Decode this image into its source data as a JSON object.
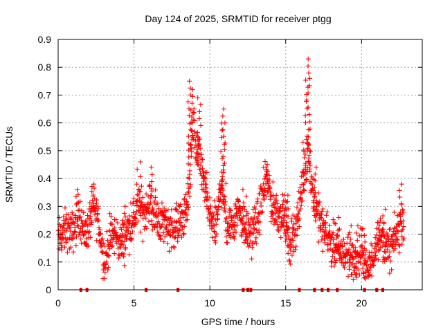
{
  "chart_data": {
    "type": "scatter",
    "title": "Day 124 of 2025, SRMTID for receiver ptgg",
    "xlabel": "GPS time / hours",
    "ylabel": "SRMTID / TECUs",
    "xlim": [
      0,
      24
    ],
    "ylim": [
      0,
      0.9
    ],
    "x_ticks": [
      0,
      5,
      10,
      15,
      20
    ],
    "x_tick_labels": [
      "0",
      "5",
      "10",
      "15",
      "20"
    ],
    "y_ticks": [
      0,
      0.1,
      0.2,
      0.3,
      0.4,
      0.5,
      0.6,
      0.7,
      0.8,
      0.9
    ],
    "y_tick_labels": [
      "0",
      "0.1",
      "0.2",
      "0.3",
      "0.4",
      "0.5",
      "0.6",
      "0.7",
      "0.8",
      "0.9"
    ],
    "grid": true,
    "marker": "+",
    "series_color": "#ff0000",
    "series": [
      {
        "name": "SRMTID",
        "envelope": [
          [
            0.0,
            0.18
          ],
          [
            0.3,
            0.2
          ],
          [
            0.6,
            0.22
          ],
          [
            0.9,
            0.2
          ],
          [
            1.2,
            0.24
          ],
          [
            1.4,
            0.28
          ],
          [
            1.7,
            0.2
          ],
          [
            2.0,
            0.22
          ],
          [
            2.3,
            0.3
          ],
          [
            2.6,
            0.26
          ],
          [
            2.9,
            0.15
          ],
          [
            3.1,
            0.1
          ],
          [
            3.4,
            0.18
          ],
          [
            3.8,
            0.2
          ],
          [
            4.2,
            0.16
          ],
          [
            4.6,
            0.22
          ],
          [
            5.0,
            0.26
          ],
          [
            5.3,
            0.3
          ],
          [
            5.6,
            0.27
          ],
          [
            6.0,
            0.32
          ],
          [
            6.3,
            0.27
          ],
          [
            6.7,
            0.25
          ],
          [
            7.1,
            0.24
          ],
          [
            7.5,
            0.22
          ],
          [
            7.9,
            0.24
          ],
          [
            8.3,
            0.26
          ],
          [
            8.6,
            0.33
          ],
          [
            8.9,
            0.62
          ],
          [
            9.1,
            0.5
          ],
          [
            9.4,
            0.45
          ],
          [
            9.7,
            0.36
          ],
          [
            10.0,
            0.26
          ],
          [
            10.4,
            0.22
          ],
          [
            10.8,
            0.4
          ],
          [
            11.1,
            0.22
          ],
          [
            11.5,
            0.24
          ],
          [
            11.9,
            0.3
          ],
          [
            12.3,
            0.22
          ],
          [
            12.7,
            0.2
          ],
          [
            13.1,
            0.24
          ],
          [
            13.5,
            0.34
          ],
          [
            13.8,
            0.4
          ],
          [
            14.1,
            0.3
          ],
          [
            14.5,
            0.28
          ],
          [
            14.9,
            0.26
          ],
          [
            15.2,
            0.16
          ],
          [
            15.6,
            0.22
          ],
          [
            15.9,
            0.28
          ],
          [
            16.2,
            0.42
          ],
          [
            16.5,
            0.5
          ],
          [
            16.8,
            0.34
          ],
          [
            17.1,
            0.28
          ],
          [
            17.4,
            0.22
          ],
          [
            17.8,
            0.2
          ],
          [
            18.1,
            0.16
          ],
          [
            18.5,
            0.14
          ],
          [
            18.9,
            0.13
          ],
          [
            19.3,
            0.11
          ],
          [
            19.7,
            0.1
          ],
          [
            20.0,
            0.14
          ],
          [
            20.3,
            0.08
          ],
          [
            20.7,
            0.1
          ],
          [
            21.0,
            0.2
          ],
          [
            21.4,
            0.18
          ],
          [
            21.8,
            0.14
          ],
          [
            22.2,
            0.18
          ],
          [
            22.6,
            0.24
          ],
          [
            22.8,
            0.26
          ]
        ],
        "spikes": [
          [
            1.3,
            0.36
          ],
          [
            2.3,
            0.38
          ],
          [
            4.3,
            0.3
          ],
          [
            5.3,
            0.46
          ],
          [
            6.2,
            0.44
          ],
          [
            8.65,
            0.75
          ],
          [
            8.8,
            0.72
          ],
          [
            9.3,
            0.69
          ],
          [
            9.7,
            0.42
          ],
          [
            10.85,
            0.65
          ],
          [
            10.95,
            0.6
          ],
          [
            12.3,
            0.36
          ],
          [
            13.8,
            0.44
          ],
          [
            15.0,
            0.34
          ],
          [
            15.1,
            0.34
          ],
          [
            16.2,
            0.53
          ],
          [
            16.4,
            0.83
          ],
          [
            16.5,
            0.76
          ],
          [
            16.9,
            0.44
          ],
          [
            18.4,
            0.26
          ],
          [
            19.3,
            0.23
          ],
          [
            19.7,
            0.23
          ],
          [
            20.2,
            0.22
          ],
          [
            21.1,
            0.23
          ],
          [
            21.5,
            0.29
          ],
          [
            22.6,
            0.38
          ]
        ]
      }
    ],
    "zero_markers": [
      1.5,
      1.9,
      5.8,
      7.9,
      12.2,
      12.5,
      12.7,
      15.9,
      16.9,
      17.4,
      17.8,
      18.4,
      20.2,
      21.0,
      21.4
    ]
  }
}
